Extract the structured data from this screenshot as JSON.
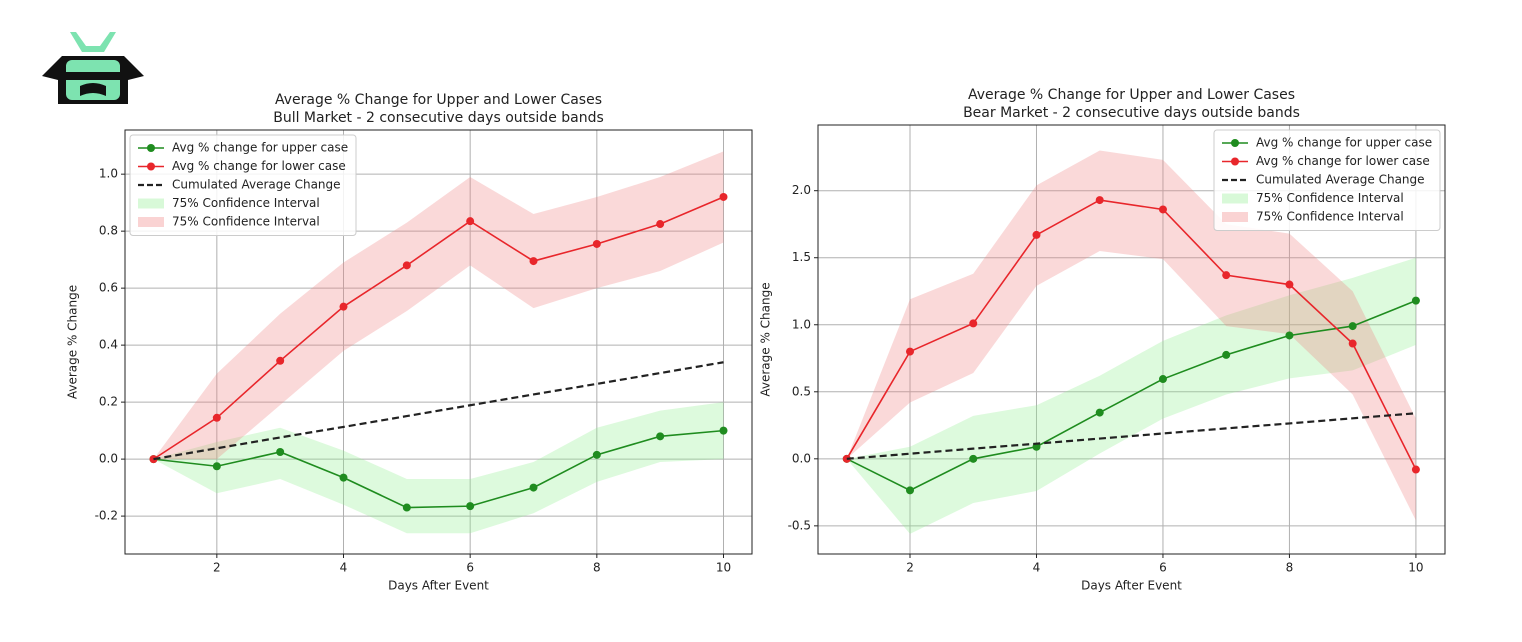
{
  "chart_data": [
    {
      "type": "line",
      "title": "Average % Change for Upper and Lower Cases",
      "subtitle": "Bull Market - 2 consecutive days outside bands",
      "x_label": "Days After Event",
      "y_label": "Average % Change",
      "x": [
        1,
        2,
        3,
        4,
        5,
        6,
        7,
        8,
        9,
        10
      ],
      "xlim": [
        0.55,
        10.45
      ],
      "xticks": [
        2,
        4,
        6,
        8,
        10
      ],
      "ylim": [
        -0.333,
        1.155
      ],
      "yticks": [
        -0.2,
        {
          "value": 0,
          "label": "0.0"
        },
        0.2,
        0.4,
        0.6,
        0.8,
        {
          "value": 1,
          "label": "1.0"
        }
      ],
      "grid": true,
      "legend": "upper left",
      "series": [
        {
          "name": "Avg % change for upper case",
          "color": "#1f8c1f",
          "values": [
            0,
            -0.025,
            0.025,
            -0.065,
            -0.17,
            -0.165,
            -0.1,
            0.015,
            0.08,
            0.1
          ]
        },
        {
          "name": "Avg % change for lower case",
          "color": "#e8262b",
          "values": [
            0,
            0.145,
            0.345,
            0.535,
            0.68,
            0.835,
            0.695,
            0.755,
            0.825,
            0.92
          ]
        },
        {
          "name": "Cumulated Average Change",
          "color": "#222222",
          "dashed": true,
          "values": [
            0,
            0.038,
            0.076,
            0.113,
            0.151,
            0.189,
            0.227,
            0.264,
            0.302,
            0.34
          ]
        }
      ],
      "bands": [
        {
          "name": "75% Confidence Interval",
          "color": "#90ee90",
          "upper": [
            0,
            0.06,
            0.11,
            0.03,
            -0.07,
            -0.07,
            -0.01,
            0.11,
            0.17,
            0.2
          ],
          "lower": [
            0,
            -0.12,
            -0.07,
            -0.16,
            -0.26,
            -0.26,
            -0.19,
            -0.08,
            -0.01,
            0.0
          ]
        },
        {
          "name": "75% Confidence Interval",
          "color": "#f08080",
          "upper": [
            0,
            0.3,
            0.51,
            0.69,
            0.83,
            0.99,
            0.86,
            0.92,
            0.99,
            1.08
          ],
          "lower": [
            0,
            0.0,
            0.19,
            0.38,
            0.52,
            0.68,
            0.53,
            0.6,
            0.66,
            0.76
          ]
        }
      ]
    },
    {
      "type": "line",
      "title": "Average % Change for Upper and Lower Cases",
      "subtitle": "Bear Market - 2 consecutive days outside bands",
      "x_label": "Days After Event",
      "y_label": "Average % Change",
      "x": [
        1,
        2,
        3,
        4,
        5,
        6,
        7,
        8,
        9,
        10
      ],
      "xlim": [
        0.545,
        10.46
      ],
      "xticks": [
        2,
        4,
        6,
        8,
        10
      ],
      "ylim": [
        -0.71,
        2.49
      ],
      "yticks": [
        -0.5,
        {
          "value": 0,
          "label": "0.0"
        },
        0.5,
        {
          "value": 1,
          "label": "1.0"
        },
        1.5,
        {
          "value": 2,
          "label": "2.0"
        }
      ],
      "grid": true,
      "legend": "upper right",
      "series": [
        {
          "name": "Avg % change for upper case",
          "color": "#1f8c1f",
          "values": [
            0,
            -0.235,
            0,
            0.09,
            0.345,
            0.595,
            0.775,
            0.92,
            0.99,
            1.18
          ]
        },
        {
          "name": "Avg % change for lower case",
          "color": "#e8262b",
          "values": [
            0,
            0.8,
            1.01,
            1.67,
            1.93,
            1.86,
            1.37,
            1.3,
            0.86,
            -0.08
          ]
        },
        {
          "name": "Cumulated Average Change",
          "color": "#222222",
          "dashed": true,
          "values": [
            0,
            0.038,
            0.076,
            0.113,
            0.151,
            0.189,
            0.227,
            0.264,
            0.302,
            0.34
          ]
        }
      ],
      "bands": [
        {
          "name": "75% Confidence Interval",
          "color": "#90ee90",
          "upper": [
            0,
            0.09,
            0.32,
            0.4,
            0.62,
            0.88,
            1.07,
            1.22,
            1.35,
            1.5
          ],
          "lower": [
            0,
            -0.56,
            -0.33,
            -0.24,
            0.04,
            0.3,
            0.48,
            0.6,
            0.66,
            0.85
          ]
        },
        {
          "name": "75% Confidence Interval",
          "color": "#f08080",
          "upper": [
            0,
            1.19,
            1.38,
            2.04,
            2.3,
            2.23,
            1.75,
            1.68,
            1.25,
            0.3
          ],
          "lower": [
            0,
            0.42,
            0.64,
            1.29,
            1.55,
            1.49,
            0.99,
            0.93,
            0.48,
            -0.46
          ]
        }
      ]
    }
  ]
}
